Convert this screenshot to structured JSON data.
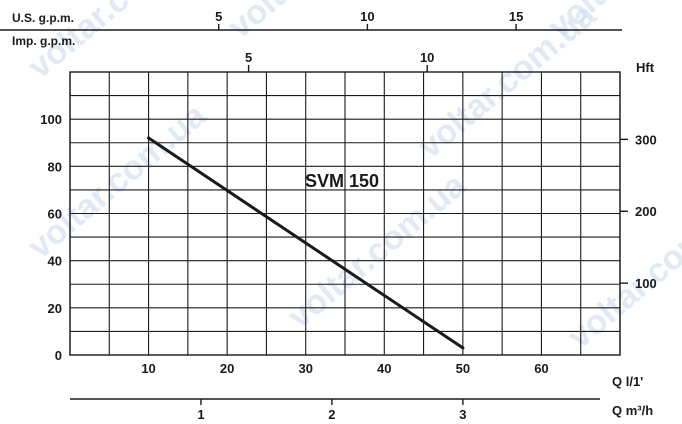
{
  "chart_data": {
    "type": "line",
    "annotation": "SVM 150",
    "series": [
      {
        "name": "SVM 150",
        "x": [
          10,
          50
        ],
        "y": [
          92,
          3
        ]
      }
    ],
    "x_axis_primary": {
      "label": "Q l/1'",
      "ticks": [
        "10",
        "20",
        "30",
        "40",
        "50",
        "60"
      ],
      "range": [
        0,
        70
      ]
    },
    "y_axis_primary": {
      "ticks": [
        "0",
        "20",
        "40",
        "60",
        "80",
        "100"
      ],
      "range": [
        0,
        120
      ]
    },
    "y_axis_secondary": {
      "label": "Hft",
      "ticks": [
        "100",
        "200",
        "300"
      ]
    },
    "x_axis_us": {
      "label": "U.S. g.p.m.",
      "ticks": [
        "5",
        "10",
        "15"
      ]
    },
    "x_axis_imp": {
      "label": "Imp. g.p.m.",
      "ticks": [
        "5",
        "10"
      ]
    },
    "x_axis_m3h": {
      "label": "Q m³/h",
      "ticks": [
        "1",
        "2",
        "3"
      ]
    },
    "grid": true,
    "line_color": "#1a1a1a",
    "watermark_text": "voltar.com.ua"
  }
}
